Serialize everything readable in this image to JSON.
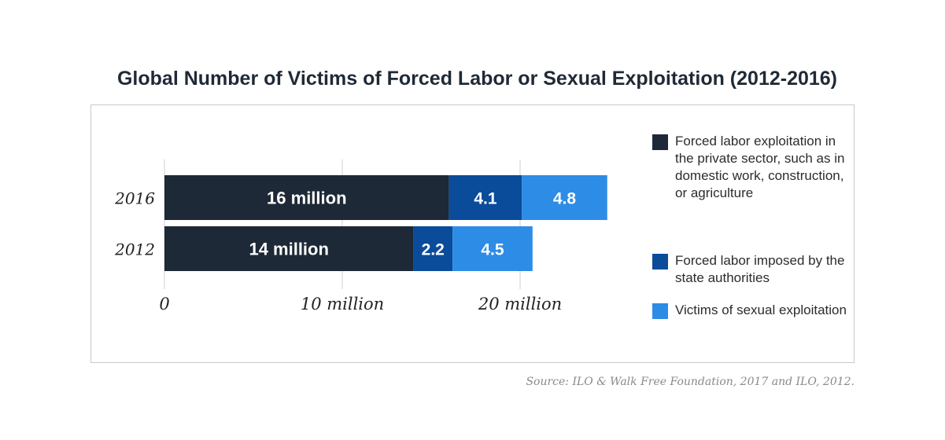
{
  "title": "Global Number of Victims of Forced Labor or Sexual Exploitation (2012-2016)",
  "source": "Source: ILO & Walk Free Foundation, 2017 and ILO, 2012.",
  "chart_data": {
    "type": "bar",
    "orientation": "horizontal",
    "stacked": true,
    "categories": [
      "2016",
      "2012"
    ],
    "series": [
      {
        "name": "Forced labor exploitation in the private sector, such as in domestic work, construction, or agriculture",
        "values": [
          16,
          14
        ],
        "labels": [
          "16 million",
          "14 million"
        ],
        "color": "#1e2937"
      },
      {
        "name": "Forced labor imposed by the state authorities",
        "values": [
          4.1,
          2.2
        ],
        "labels": [
          "4.1",
          "2.2"
        ],
        "color": "#0a4c9a"
      },
      {
        "name": "Victims of sexual exploitation",
        "values": [
          4.8,
          4.5
        ],
        "labels": [
          "4.8",
          "4.5"
        ],
        "color": "#2d8ce6"
      }
    ],
    "xlim": [
      0,
      30
    ],
    "xticks": [
      0,
      10,
      20
    ],
    "xtick_labels": [
      "0",
      "10 million",
      "20 million"
    ],
    "grid": true,
    "legend_position": "right"
  },
  "legend_items": [
    {
      "label": "Forced labor exploitation in the private sector, such as in domestic work, construction, or agriculture",
      "color": "#1e2937"
    },
    {
      "label": "Forced labor imposed by the state authorities",
      "color": "#0a4c9a"
    },
    {
      "label": "Victims of sexual exploitation",
      "color": "#2d8ce6"
    }
  ]
}
